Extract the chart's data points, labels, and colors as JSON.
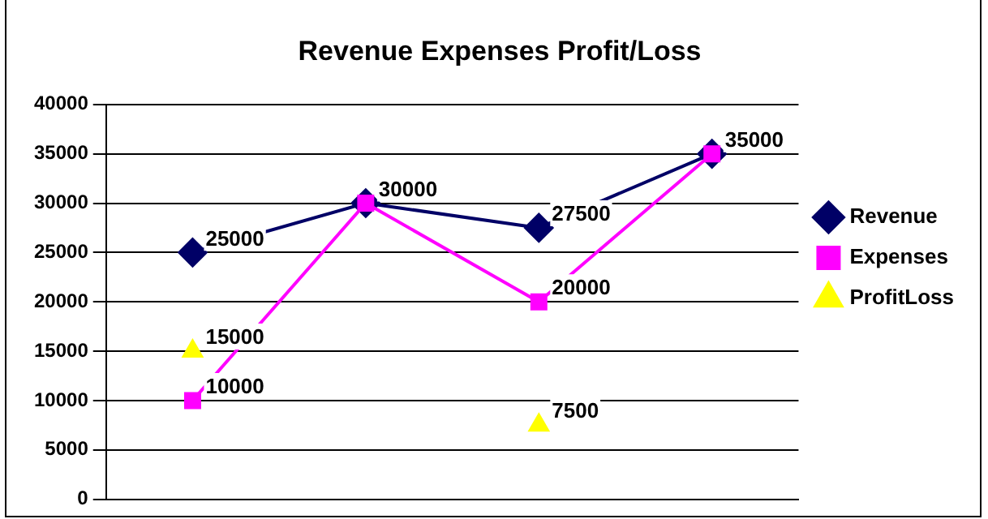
{
  "chart_data": {
    "type": "line",
    "title": "Revenue Expenses Profit/Loss",
    "categories": [
      null,
      null,
      null,
      null
    ],
    "series": [
      {
        "name": "Revenue",
        "color": "#000066",
        "marker": "diamond",
        "values": [
          25000,
          30000,
          27500,
          35000
        ],
        "value_labels": [
          "25000",
          null,
          "27500",
          null
        ]
      },
      {
        "name": "Expenses",
        "color": "#ff00ff",
        "marker": "square",
        "values": [
          10000,
          30000,
          20000,
          35000
        ]
      },
      {
        "name": "ProfitLoss",
        "type": "scatter",
        "color": "#ffff00",
        "marker": "triangle",
        "values": [
          15000,
          null,
          7500,
          null
        ]
      }
    ],
    "ylim": [
      0,
      40000
    ],
    "yticks": [
      0,
      5000,
      10000,
      15000,
      20000,
      25000,
      30000,
      35000,
      40000
    ],
    "grid": "y",
    "legend": "right",
    "tick_labels": "y",
    "data_labels": true
  }
}
